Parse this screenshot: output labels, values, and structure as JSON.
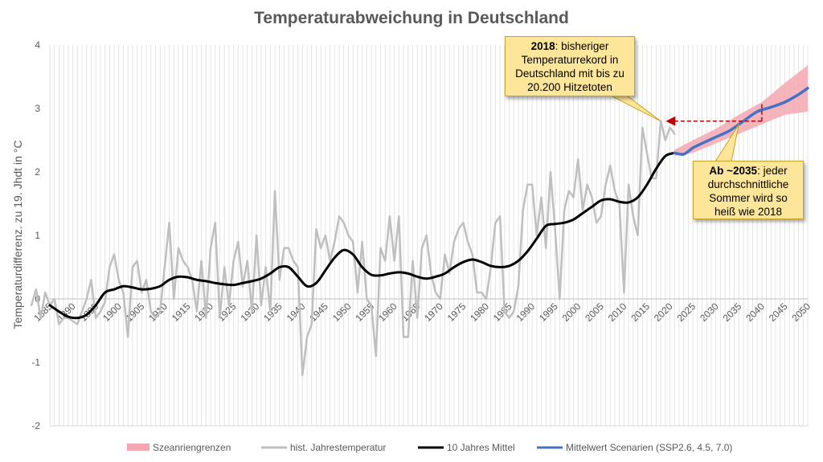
{
  "chart_data": {
    "type": "line",
    "title": "Temperaturabweichung in Deutschland",
    "ylabel": "Temperaturdifferenz. zu 19. Jhdt in °C",
    "xlabel": "",
    "xlim": [
      1885,
      2050
    ],
    "ylim": [
      -2,
      4
    ],
    "yticks": [
      -2,
      -1,
      0,
      1,
      2,
      3,
      4
    ],
    "xticks": [
      1885,
      1890,
      1895,
      1900,
      1905,
      1910,
      1915,
      1920,
      1925,
      1930,
      1935,
      1940,
      1945,
      1950,
      1955,
      1960,
      1965,
      1970,
      1975,
      1980,
      1985,
      1990,
      1995,
      2000,
      2005,
      2010,
      2015,
      2020,
      2025,
      2030,
      2035,
      2040,
      2045,
      2050
    ],
    "grid": "vertical yearly",
    "legend_position": "bottom",
    "series": [
      {
        "name": "hist. Jahrestemperatur",
        "color": "#bfbfbf",
        "x": [
          1881,
          1882,
          1883,
          1884,
          1885,
          1886,
          1887,
          1888,
          1889,
          1890,
          1891,
          1892,
          1893,
          1894,
          1895,
          1896,
          1897,
          1898,
          1899,
          1900,
          1901,
          1902,
          1903,
          1904,
          1905,
          1906,
          1907,
          1908,
          1909,
          1910,
          1911,
          1912,
          1913,
          1914,
          1915,
          1916,
          1917,
          1918,
          1919,
          1920,
          1921,
          1922,
          1923,
          1924,
          1925,
          1926,
          1927,
          1928,
          1929,
          1930,
          1931,
          1932,
          1933,
          1934,
          1935,
          1936,
          1937,
          1938,
          1939,
          1940,
          1941,
          1942,
          1943,
          1944,
          1945,
          1946,
          1947,
          1948,
          1949,
          1950,
          1951,
          1952,
          1953,
          1954,
          1955,
          1956,
          1957,
          1958,
          1959,
          1960,
          1961,
          1962,
          1963,
          1964,
          1965,
          1966,
          1967,
          1968,
          1969,
          1970,
          1971,
          1972,
          1973,
          1974,
          1975,
          1976,
          1977,
          1978,
          1979,
          1980,
          1981,
          1982,
          1983,
          1984,
          1985,
          1986,
          1987,
          1988,
          1989,
          1990,
          1991,
          1992,
          1993,
          1994,
          1995,
          1996,
          1997,
          1998,
          1999,
          2000,
          2001,
          2002,
          2003,
          2004,
          2005,
          2006,
          2007,
          2008,
          2009,
          2010,
          2011,
          2012,
          2013,
          2014,
          2015,
          2016,
          2017,
          2018,
          2019,
          2020,
          2021
        ],
        "values": [
          -0.1,
          0.15,
          -0.3,
          0.1,
          -0.1,
          0.0,
          -0.4,
          -0.3,
          -0.3,
          -0.35,
          -0.4,
          -0.2,
          0.0,
          0.3,
          -0.3,
          -0.2,
          -0.05,
          0.5,
          0.7,
          0.3,
          0.1,
          -0.6,
          0.5,
          0.6,
          0.1,
          0.3,
          -0.2,
          -0.3,
          -0.2,
          0.5,
          1.2,
          0.0,
          0.8,
          0.6,
          0.5,
          0.3,
          -0.2,
          0.6,
          -0.3,
          0.8,
          1.2,
          -0.3,
          0.5,
          -0.1,
          0.6,
          0.9,
          0.2,
          0.6,
          -0.2,
          1.0,
          -0.1,
          0.5,
          -0.2,
          1.7,
          0.3,
          0.8,
          0.8,
          0.6,
          0.5,
          -1.2,
          -0.6,
          -0.4,
          1.1,
          0.8,
          1.0,
          0.6,
          0.9,
          1.3,
          1.2,
          1.0,
          0.9,
          0.1,
          0.9,
          0.0,
          -0.1,
          -0.9,
          0.8,
          0.6,
          1.3,
          0.6,
          1.3,
          -0.6,
          -0.6,
          0.6,
          -0.3,
          0.8,
          1.0,
          0.4,
          0.1,
          0.0,
          0.7,
          0.4,
          0.9,
          1.1,
          1.2,
          0.9,
          0.7,
          0.1,
          0.1,
          0.0,
          0.5,
          1.2,
          1.3,
          -0.2,
          -0.3,
          -0.2,
          0.2,
          1.4,
          1.8,
          1.8,
          1.0,
          1.6,
          0.8,
          2.0,
          1.1,
          0.0,
          1.4,
          1.7,
          1.6,
          2.2,
          1.4,
          1.8,
          1.6,
          1.2,
          1.3,
          1.8,
          2.1,
          1.7,
          1.5,
          0.1,
          1.8,
          1.3,
          1.0,
          2.7,
          2.3,
          1.9,
          1.9,
          2.8,
          2.5,
          2.7,
          2.6
        ]
      },
      {
        "name": "10 Jahres Mittel",
        "color": "#000000",
        "x": [
          1885,
          1887,
          1889,
          1891,
          1893,
          1895,
          1897,
          1899,
          1901,
          1903,
          1905,
          1907,
          1909,
          1911,
          1913,
          1915,
          1917,
          1919,
          1921,
          1923,
          1925,
          1927,
          1929,
          1931,
          1933,
          1935,
          1937,
          1939,
          1941,
          1943,
          1945,
          1947,
          1949,
          1951,
          1953,
          1955,
          1957,
          1959,
          1961,
          1963,
          1965,
          1967,
          1969,
          1971,
          1973,
          1975,
          1977,
          1979,
          1981,
          1983,
          1985,
          1987,
          1989,
          1991,
          1993,
          1995,
          1997,
          1999,
          2001,
          2003,
          2005,
          2007,
          2009,
          2011,
          2013,
          2015,
          2017,
          2019,
          2021
        ],
        "values": [
          -0.1,
          -0.2,
          -0.28,
          -0.3,
          -0.25,
          -0.1,
          0.1,
          0.15,
          0.2,
          0.18,
          0.15,
          0.16,
          0.2,
          0.3,
          0.35,
          0.34,
          0.3,
          0.28,
          0.25,
          0.23,
          0.22,
          0.25,
          0.28,
          0.32,
          0.4,
          0.5,
          0.5,
          0.35,
          0.2,
          0.25,
          0.45,
          0.65,
          0.77,
          0.7,
          0.5,
          0.38,
          0.37,
          0.4,
          0.42,
          0.4,
          0.35,
          0.32,
          0.35,
          0.4,
          0.5,
          0.58,
          0.62,
          0.58,
          0.52,
          0.5,
          0.52,
          0.6,
          0.75,
          0.95,
          1.15,
          1.18,
          1.2,
          1.25,
          1.35,
          1.45,
          1.55,
          1.57,
          1.53,
          1.52,
          1.6,
          1.8,
          2.05,
          2.25,
          2.3
        ]
      },
      {
        "name": "Mittelwert Scenarien (SSP2.6, 4.5, 7.0)",
        "color": "#4472c4",
        "x": [
          2021,
          2023,
          2025,
          2027,
          2030,
          2033,
          2036,
          2039,
          2042,
          2045,
          2048,
          2050
        ],
        "values": [
          2.3,
          2.28,
          2.38,
          2.45,
          2.55,
          2.65,
          2.8,
          2.95,
          3.02,
          3.1,
          3.22,
          3.32
        ]
      },
      {
        "name": "Szeanriengrenzen",
        "type": "area",
        "color": "#f4a7b0",
        "x": [
          2021,
          2025,
          2030,
          2035,
          2040,
          2045,
          2050
        ],
        "upper": [
          2.35,
          2.5,
          2.68,
          2.9,
          3.1,
          3.4,
          3.68
        ],
        "lower": [
          2.25,
          2.3,
          2.45,
          2.6,
          2.75,
          2.9,
          2.95
        ]
      }
    ],
    "annotations": [
      {
        "bold": "2018",
        "text": ": bisheriger Temperaturrekord in Deutschland mit bis zu 20.200 Hitzetoten",
        "target_x": 2018,
        "target_y": 2.8
      },
      {
        "bold": "Ab ~2035",
        "text": ": jeder durchschnittliche Sommer wird so heiß wie 2018",
        "target_x": 2035,
        "target_y": 2.75
      }
    ],
    "arrows": [
      {
        "from_x": 2040,
        "from_y": 2.8,
        "to_x": 2019,
        "to_y": 2.8,
        "color": "#c00000",
        "style": "dashed"
      },
      {
        "from_x": 2040,
        "from_y": 2.8,
        "to_x": 2040,
        "to_y": 3.1,
        "color": "#c00000",
        "style": "dashed"
      }
    ]
  }
}
